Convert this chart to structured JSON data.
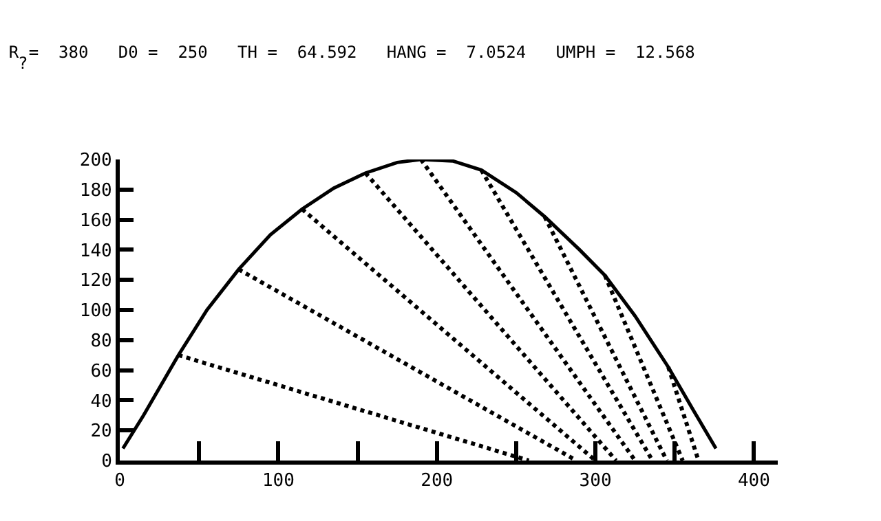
{
  "chart_data": {
    "type": "line",
    "title": "R =  380   D0 =  250   TH =  64.592   HANG =  7.0524   UMPH =  12.568",
    "annotations": [
      "?"
    ],
    "line_style": "solid",
    "marker": "none",
    "grid": false,
    "xlim": [
      0,
      415
    ],
    "ylim": [
      0,
      200
    ],
    "xticks": [
      0,
      {
        "value": 50,
        "label": null
      },
      100,
      {
        "value": 150,
        "label": null
      },
      200,
      {
        "value": 250,
        "label": null
      },
      300,
      {
        "value": 350,
        "label": null
      },
      400
    ],
    "yticks": [
      0,
      20,
      40,
      60,
      80,
      100,
      120,
      140,
      160,
      180,
      200
    ],
    "series": [
      {
        "color": "#000000",
        "x": [
          2,
          15,
          37,
          55,
          75,
          95,
          115,
          135,
          155,
          175,
          190,
          210,
          228,
          250,
          268,
          290,
          306,
          325,
          346,
          362,
          376
        ],
        "values": [
          8,
          30,
          70,
          100,
          127,
          150,
          167,
          181,
          191,
          198,
          200,
          199,
          193,
          178,
          162,
          140,
          123,
          96,
          62,
          33,
          8
        ]
      },
      {
        "color": "#000000",
        "line_style": "dotted",
        "x": [
          37,
          258
        ],
        "values": [
          70,
          0
        ]
      },
      {
        "color": "#000000",
        "line_style": "dotted",
        "x": [
          75,
          288
        ],
        "values": [
          127,
          0
        ]
      },
      {
        "color": "#000000",
        "line_style": "dotted",
        "x": [
          115,
          300
        ],
        "values": [
          167,
          0
        ]
      },
      {
        "color": "#000000",
        "line_style": "dotted",
        "x": [
          155,
          313
        ],
        "values": [
          191,
          0
        ]
      },
      {
        "color": "#000000",
        "line_style": "dotted",
        "x": [
          190,
          325
        ],
        "values": [
          200,
          0
        ]
      },
      {
        "color": "#000000",
        "line_style": "dotted",
        "x": [
          228,
          336
        ],
        "values": [
          193,
          0
        ]
      },
      {
        "color": "#000000",
        "line_style": "dotted",
        "x": [
          268,
          345
        ],
        "values": [
          162,
          0
        ]
      },
      {
        "color": "#000000",
        "line_style": "dotted",
        "x": [
          306,
          355
        ],
        "values": [
          123,
          0
        ]
      },
      {
        "color": "#000000",
        "line_style": "dotted",
        "x": [
          346,
          365
        ],
        "values": [
          62,
          0
        ]
      }
    ]
  }
}
